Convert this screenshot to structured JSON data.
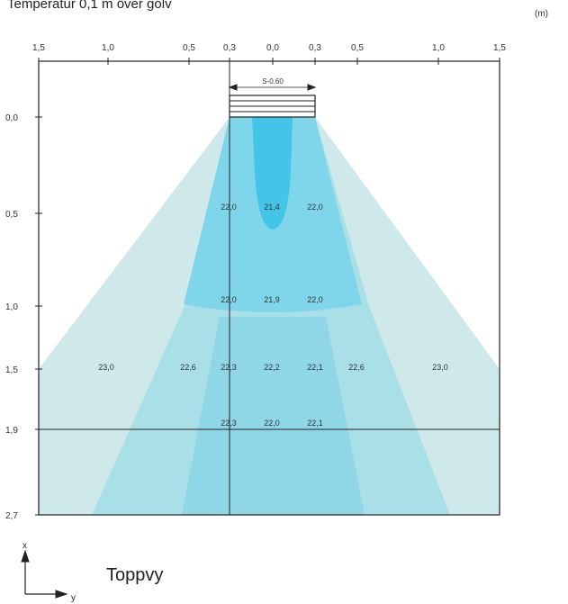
{
  "title": "Temperatur  0,1 m över golv",
  "unit": "(m)",
  "x_ticks": [
    "1,5",
    "1,0",
    "0,5",
    "0,3",
    "0,0",
    "0,3",
    "0,5",
    "1,0",
    "1,5"
  ],
  "y_ticks": [
    "0,0",
    "0,5",
    "1,0",
    "1,5",
    "1,9",
    "2,7"
  ],
  "device_label": "S-0.60",
  "temperatures": [
    "22,0",
    "21,4",
    "22,0",
    "22,0",
    "21,9",
    "22,0",
    "23,0",
    "22,6",
    "22,3",
    "22,2",
    "22,1",
    "22,6",
    "23,0",
    "22,3",
    "22,0",
    "22,1"
  ],
  "axes": {
    "x_label": "x",
    "y_label": "y"
  },
  "view_label": "Toppvy",
  "colors": {
    "outer": "#cfe9ea",
    "mid": "#a9dfe6",
    "inner": "#8fd6e6",
    "core": "#7fd6ea",
    "jet": "#42c5e6"
  }
}
